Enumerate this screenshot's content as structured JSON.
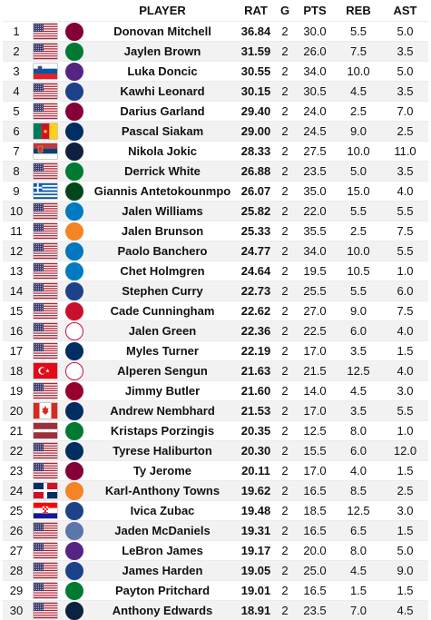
{
  "columns": {
    "rank": "",
    "flag": "",
    "team": "",
    "player": "PLAYER",
    "rat": "RAT",
    "g": "G",
    "pts": "PTS",
    "reb": "REB",
    "ast": "AST"
  },
  "team_colors": {
    "CLE": {
      "bg": "#860038",
      "fg": "#fdbb30"
    },
    "BOS": {
      "bg": "#007a33",
      "fg": "#ffffff"
    },
    "LAL": {
      "bg": "#552583",
      "fg": "#fdb927"
    },
    "LAC": {
      "bg": "#1d428a",
      "fg": "#ffffff"
    },
    "IND": {
      "bg": "#002d62",
      "fg": "#fdbb30"
    },
    "DEN": {
      "bg": "#0e2240",
      "fg": "#fec524"
    },
    "MIL": {
      "bg": "#00471b",
      "fg": "#eee1c6"
    },
    "OKC": {
      "bg": "#007ac1",
      "fg": "#ef3b24"
    },
    "NYK": {
      "bg": "#f58426",
      "fg": "#006bb6"
    },
    "ORL": {
      "bg": "#0077c0",
      "fg": "#ffffff"
    },
    "GSW": {
      "bg": "#1d428a",
      "fg": "#ffc72c"
    },
    "DET": {
      "bg": "#c8102e",
      "fg": "#1d42ba"
    },
    "HOU": {
      "bg": "#ffffff",
      "fg": "#ce1141"
    },
    "MIA": {
      "bg": "#98002e",
      "fg": "#f9a01b"
    },
    "MEM": {
      "bg": "#5d76a9",
      "fg": "#12173f"
    },
    "MIN": {
      "bg": "#0c2340",
      "fg": "#78be20"
    }
  },
  "rows": [
    {
      "rank": "1",
      "flag": "us",
      "team": "CLE",
      "team_icon": "cavaliers-logo-icon",
      "player": "Donovan Mitchell",
      "rat": "36.84",
      "g": "2",
      "pts": "30.0",
      "reb": "5.5",
      "ast": "5.0"
    },
    {
      "rank": "2",
      "flag": "us",
      "team": "BOS",
      "team_icon": "celtics-logo-icon",
      "player": "Jaylen Brown",
      "rat": "31.59",
      "g": "2",
      "pts": "26.0",
      "reb": "7.5",
      "ast": "3.5"
    },
    {
      "rank": "3",
      "flag": "si",
      "team": "LAL",
      "team_icon": "lakers-logo-icon",
      "player": "Luka Doncic",
      "rat": "30.55",
      "g": "2",
      "pts": "34.0",
      "reb": "10.0",
      "ast": "5.0"
    },
    {
      "rank": "4",
      "flag": "us",
      "team": "LAC",
      "team_icon": "clippers-logo-icon",
      "player": "Kawhi Leonard",
      "rat": "30.15",
      "g": "2",
      "pts": "30.5",
      "reb": "4.5",
      "ast": "3.5"
    },
    {
      "rank": "5",
      "flag": "us",
      "team": "CLE",
      "team_icon": "cavaliers-logo-icon",
      "player": "Darius Garland",
      "rat": "29.40",
      "g": "2",
      "pts": "24.0",
      "reb": "2.5",
      "ast": "7.0"
    },
    {
      "rank": "6",
      "flag": "cm",
      "team": "IND",
      "team_icon": "pacers-logo-icon",
      "player": "Pascal Siakam",
      "rat": "29.00",
      "g": "2",
      "pts": "24.5",
      "reb": "9.0",
      "ast": "2.5"
    },
    {
      "rank": "7",
      "flag": "rs",
      "team": "DEN",
      "team_icon": "nuggets-logo-icon",
      "player": "Nikola Jokic",
      "rat": "28.33",
      "g": "2",
      "pts": "27.5",
      "reb": "10.0",
      "ast": "11.0"
    },
    {
      "rank": "8",
      "flag": "us",
      "team": "BOS",
      "team_icon": "celtics-logo-icon",
      "player": "Derrick White",
      "rat": "26.88",
      "g": "2",
      "pts": "23.5",
      "reb": "5.0",
      "ast": "3.5"
    },
    {
      "rank": "9",
      "flag": "gr",
      "team": "MIL",
      "team_icon": "bucks-logo-icon",
      "player": "Giannis Antetokounmpo",
      "rat": "26.07",
      "g": "2",
      "pts": "35.0",
      "reb": "15.0",
      "ast": "4.0"
    },
    {
      "rank": "10",
      "flag": "us",
      "team": "OKC",
      "team_icon": "thunder-logo-icon",
      "player": "Jalen Williams",
      "rat": "25.82",
      "g": "2",
      "pts": "22.0",
      "reb": "5.5",
      "ast": "5.5"
    },
    {
      "rank": "11",
      "flag": "us",
      "team": "NYK",
      "team_icon": "knicks-logo-icon",
      "player": "Jalen Brunson",
      "rat": "25.33",
      "g": "2",
      "pts": "35.5",
      "reb": "2.5",
      "ast": "7.5"
    },
    {
      "rank": "12",
      "flag": "us",
      "team": "ORL",
      "team_icon": "magic-logo-icon",
      "player": "Paolo Banchero",
      "rat": "24.77",
      "g": "2",
      "pts": "34.0",
      "reb": "10.0",
      "ast": "5.5"
    },
    {
      "rank": "13",
      "flag": "us",
      "team": "OKC",
      "team_icon": "thunder-logo-icon",
      "player": "Chet Holmgren",
      "rat": "24.64",
      "g": "2",
      "pts": "19.5",
      "reb": "10.5",
      "ast": "1.0"
    },
    {
      "rank": "14",
      "flag": "us",
      "team": "GSW",
      "team_icon": "warriors-logo-icon",
      "player": "Stephen Curry",
      "rat": "22.73",
      "g": "2",
      "pts": "25.5",
      "reb": "5.5",
      "ast": "6.0"
    },
    {
      "rank": "15",
      "flag": "us",
      "team": "DET",
      "team_icon": "pistons-logo-icon",
      "player": "Cade Cunningham",
      "rat": "22.62",
      "g": "2",
      "pts": "27.0",
      "reb": "9.0",
      "ast": "7.5"
    },
    {
      "rank": "16",
      "flag": "us",
      "team": "HOU",
      "team_icon": "rockets-logo-icon",
      "player": "Jalen Green",
      "rat": "22.36",
      "g": "2",
      "pts": "22.5",
      "reb": "6.0",
      "ast": "4.0"
    },
    {
      "rank": "17",
      "flag": "us",
      "team": "IND",
      "team_icon": "pacers-logo-icon",
      "player": "Myles Turner",
      "rat": "22.19",
      "g": "2",
      "pts": "17.0",
      "reb": "3.5",
      "ast": "1.5"
    },
    {
      "rank": "18",
      "flag": "tr",
      "team": "HOU",
      "team_icon": "rockets-logo-icon",
      "player": "Alperen Sengun",
      "rat": "21.63",
      "g": "2",
      "pts": "21.5",
      "reb": "12.5",
      "ast": "4.0"
    },
    {
      "rank": "19",
      "flag": "us",
      "team": "MIA",
      "team_icon": "heat-logo-icon",
      "player": "Jimmy Butler",
      "rat": "21.60",
      "g": "2",
      "pts": "14.0",
      "reb": "4.5",
      "ast": "3.0"
    },
    {
      "rank": "20",
      "flag": "ca",
      "team": "IND",
      "team_icon": "pacers-logo-icon",
      "player": "Andrew Nembhard",
      "rat": "21.53",
      "g": "2",
      "pts": "17.0",
      "reb": "3.5",
      "ast": "5.5"
    },
    {
      "rank": "21",
      "flag": "lv",
      "team": "BOS",
      "team_icon": "celtics-logo-icon",
      "player": "Kristaps Porzingis",
      "rat": "20.35",
      "g": "2",
      "pts": "12.5",
      "reb": "8.0",
      "ast": "1.0"
    },
    {
      "rank": "22",
      "flag": "us",
      "team": "IND",
      "team_icon": "pacers-logo-icon",
      "player": "Tyrese Haliburton",
      "rat": "20.30",
      "g": "2",
      "pts": "15.5",
      "reb": "6.0",
      "ast": "12.0"
    },
    {
      "rank": "23",
      "flag": "us",
      "team": "CLE",
      "team_icon": "cavaliers-logo-icon",
      "player": "Ty Jerome",
      "rat": "20.11",
      "g": "2",
      "pts": "17.0",
      "reb": "4.0",
      "ast": "1.5"
    },
    {
      "rank": "24",
      "flag": "do",
      "team": "NYK",
      "team_icon": "knicks-logo-icon",
      "player": "Karl-Anthony Towns",
      "rat": "19.62",
      "g": "2",
      "pts": "16.5",
      "reb": "8.5",
      "ast": "2.5"
    },
    {
      "rank": "25",
      "flag": "hr",
      "team": "LAC",
      "team_icon": "clippers-logo-icon",
      "player": "Ivica Zubac",
      "rat": "19.48",
      "g": "2",
      "pts": "18.5",
      "reb": "12.5",
      "ast": "3.0"
    },
    {
      "rank": "26",
      "flag": "us",
      "team": "MEM",
      "team_icon": "grizzlies-logo-icon",
      "player": "Jaden McDaniels",
      "rat": "19.31",
      "g": "2",
      "pts": "16.5",
      "reb": "6.5",
      "ast": "1.5"
    },
    {
      "rank": "27",
      "flag": "us",
      "team": "LAL",
      "team_icon": "lakers-logo-icon",
      "player": "LeBron James",
      "rat": "19.17",
      "g": "2",
      "pts": "20.0",
      "reb": "8.0",
      "ast": "5.0"
    },
    {
      "rank": "28",
      "flag": "us",
      "team": "LAC",
      "team_icon": "clippers-logo-icon",
      "player": "James Harden",
      "rat": "19.05",
      "g": "2",
      "pts": "25.0",
      "reb": "4.5",
      "ast": "9.0"
    },
    {
      "rank": "29",
      "flag": "us",
      "team": "BOS",
      "team_icon": "celtics-logo-icon",
      "player": "Payton Pritchard",
      "rat": "19.01",
      "g": "2",
      "pts": "16.5",
      "reb": "1.5",
      "ast": "1.5"
    },
    {
      "rank": "30",
      "flag": "us",
      "team": "MIN",
      "team_icon": "timberwolves-logo-icon",
      "player": "Anthony Edwards",
      "rat": "18.91",
      "g": "2",
      "pts": "23.5",
      "reb": "7.0",
      "ast": "4.5"
    }
  ]
}
